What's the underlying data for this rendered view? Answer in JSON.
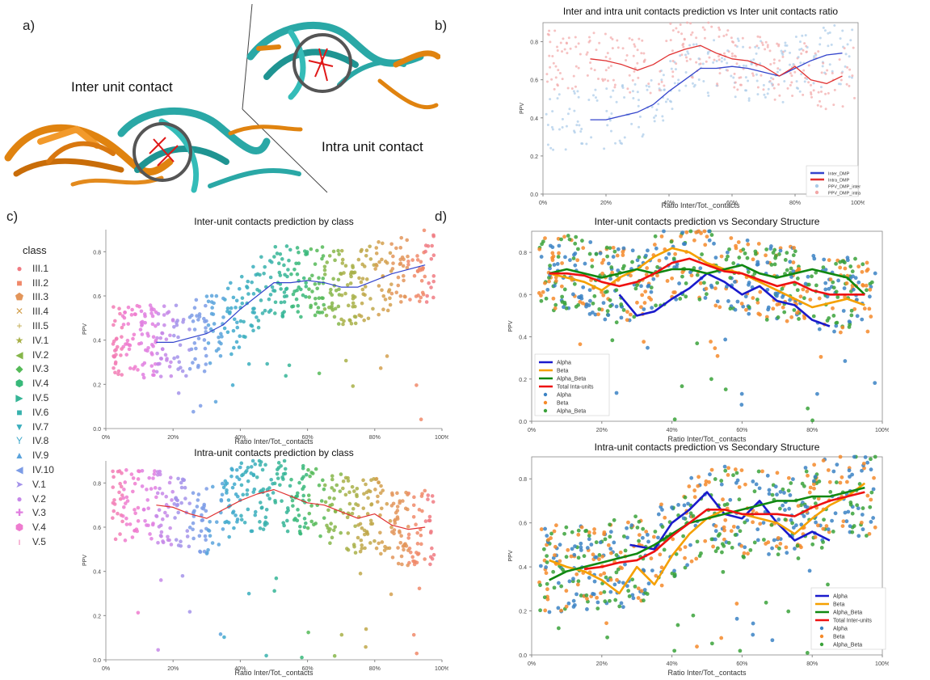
{
  "panels": {
    "a": "a)",
    "b": "b)",
    "c": "c)",
    "d": "d)"
  },
  "panel_a": {
    "inter_label": "Inter unit contact",
    "intra_label": "Intra unit contact"
  },
  "class_legend": {
    "title": "class",
    "items": [
      {
        "label": "III.1",
        "symbol": "●",
        "color": "#f07b82"
      },
      {
        "label": "III.2",
        "symbol": "■",
        "color": "#f0896a"
      },
      {
        "label": "III.3",
        "symbol": "⬟",
        "color": "#e3955a"
      },
      {
        "label": "III.4",
        "symbol": "✕",
        "color": "#d3a04f"
      },
      {
        "label": "III.5",
        "symbol": "+",
        "color": "#c0a84a"
      },
      {
        "label": "IV.1",
        "symbol": "★",
        "color": "#a8b048"
      },
      {
        "label": "IV.2",
        "symbol": "◀",
        "color": "#86b64a"
      },
      {
        "label": "IV.3",
        "symbol": "◆",
        "color": "#55ba58"
      },
      {
        "label": "IV.4",
        "symbol": "⬢",
        "color": "#38b97a"
      },
      {
        "label": "IV.5",
        "symbol": "▶",
        "color": "#35b596"
      },
      {
        "label": "IV.6",
        "symbol": "■",
        "color": "#38b2ad"
      },
      {
        "label": "IV.7",
        "symbol": "▼",
        "color": "#3aaebd"
      },
      {
        "label": "IV.8",
        "symbol": "Y",
        "color": "#40a9cc"
      },
      {
        "label": "IV.9",
        "symbol": "▲",
        "color": "#5aa3dc"
      },
      {
        "label": "IV.10",
        "symbol": "◀",
        "color": "#7c9ce6"
      },
      {
        "label": "V.1",
        "symbol": "➤",
        "color": "#a493ea"
      },
      {
        "label": "V.2",
        "symbol": "●",
        "color": "#c688e8"
      },
      {
        "label": "V.3",
        "symbol": "✚",
        "color": "#e07fe0"
      },
      {
        "label": "V.4",
        "symbol": "⬢",
        "color": "#ee7ccf"
      },
      {
        "label": "V.5",
        "symbol": "ı",
        "color": "#f27cb5"
      }
    ]
  },
  "chart_data": [
    {
      "id": "b",
      "type": "scatter",
      "title": "Inter and intra unit contacts prediction vs Inter unit contacts ratio",
      "xlabel": "Ratio Inter/Tot._contacts",
      "ylabel": "PPV",
      "xlim": [
        0,
        100
      ],
      "ylim": [
        0,
        0.9
      ],
      "xticks": [
        "0%",
        "20%",
        "40%",
        "60%",
        "80%",
        "100%"
      ],
      "yticks": [
        "0.0",
        "0.2",
        "0.4",
        "0.6",
        "0.8"
      ],
      "legend_position": "lower-right",
      "legend": [
        "Inter_DMP",
        "Intra_DMP",
        "PPV_DMP_inter",
        "PPV_DMP_intra"
      ],
      "series": [
        {
          "name": "Inter_DMP",
          "kind": "line",
          "color": "#3344cc",
          "x": [
            15,
            20,
            25,
            30,
            35,
            40,
            45,
            50,
            55,
            60,
            65,
            70,
            75,
            80,
            85,
            90,
            95
          ],
          "y": [
            0.39,
            0.39,
            0.41,
            0.43,
            0.47,
            0.54,
            0.6,
            0.66,
            0.66,
            0.67,
            0.66,
            0.64,
            0.62,
            0.66,
            0.7,
            0.73,
            0.74
          ]
        },
        {
          "name": "Intra_DMP",
          "kind": "line",
          "color": "#e03030",
          "x": [
            15,
            20,
            25,
            30,
            35,
            40,
            45,
            50,
            55,
            60,
            65,
            70,
            75,
            80,
            85,
            90,
            95
          ],
          "y": [
            0.71,
            0.7,
            0.68,
            0.65,
            0.68,
            0.73,
            0.76,
            0.78,
            0.74,
            0.71,
            0.7,
            0.67,
            0.62,
            0.67,
            0.6,
            0.58,
            0.62
          ]
        }
      ]
    },
    {
      "id": "c-top",
      "type": "scatter",
      "title": "Inter-unit contacts prediction by class",
      "xlabel": "Ratio Inter/Tot._contacts",
      "ylabel": "PPV",
      "xlim": [
        0,
        100
      ],
      "ylim": [
        0,
        0.9
      ],
      "xticks": [
        "0%",
        "20%",
        "40%",
        "60%",
        "80%",
        "100%"
      ],
      "yticks": [
        "0.0",
        "0.2",
        "0.4",
        "0.6",
        "0.8"
      ],
      "series": [
        {
          "name": "",
          "kind": "line",
          "color": "#3344cc",
          "x": [
            15,
            20,
            25,
            30,
            35,
            40,
            45,
            50,
            55,
            60,
            65,
            70,
            75,
            80,
            85,
            90,
            95
          ],
          "y": [
            0.39,
            0.39,
            0.41,
            0.43,
            0.47,
            0.54,
            0.6,
            0.66,
            0.66,
            0.67,
            0.66,
            0.64,
            0.64,
            0.67,
            0.7,
            0.72,
            0.74
          ]
        }
      ]
    },
    {
      "id": "c-bottom",
      "type": "scatter",
      "title": "Intra-unit contacts prediction by class",
      "xlabel": "Ratio Inter/Tot._contacts",
      "ylabel": "PPV",
      "xlim": [
        0,
        100
      ],
      "ylim": [
        0,
        0.9
      ],
      "xticks": [
        "0%",
        "20%",
        "40%",
        "60%",
        "80%",
        "100%"
      ],
      "yticks": [
        "0.0",
        "0.2",
        "0.4",
        "0.6",
        "0.8"
      ],
      "series": [
        {
          "name": "",
          "kind": "line",
          "color": "#e03030",
          "x": [
            15,
            20,
            25,
            30,
            35,
            40,
            45,
            50,
            55,
            60,
            65,
            70,
            75,
            80,
            85,
            90,
            95
          ],
          "y": [
            0.7,
            0.69,
            0.66,
            0.64,
            0.68,
            0.72,
            0.75,
            0.77,
            0.74,
            0.71,
            0.7,
            0.67,
            0.64,
            0.66,
            0.61,
            0.59,
            0.6
          ]
        }
      ]
    },
    {
      "id": "d-top",
      "type": "scatter",
      "title": "Inter-unit contacts prediction vs Secondary Structure",
      "xlabel": "Ratio Inter/Tot._contacts",
      "ylabel": "PPV",
      "xlim": [
        0,
        100
      ],
      "ylim": [
        0,
        0.9
      ],
      "xticks": [
        "0%",
        "20%",
        "40%",
        "60%",
        "80%",
        "100%"
      ],
      "yticks": [
        "0.0",
        "0.2",
        "0.4",
        "0.6",
        "0.8"
      ],
      "legend_position": "lower-left",
      "legend": [
        "Alpha",
        "Beta",
        "Alpha_Beta",
        "Total Inta-units",
        "Alpha",
        "Beta",
        "Alpha_Beta"
      ],
      "series": [
        {
          "name": "Alpha",
          "kind": "line",
          "color": "#1a1acc",
          "x": [
            25,
            30,
            35,
            40,
            45,
            50,
            55,
            60,
            65,
            70,
            75,
            80,
            85
          ],
          "y": [
            0.6,
            0.5,
            0.52,
            0.58,
            0.63,
            0.7,
            0.66,
            0.6,
            0.64,
            0.57,
            0.55,
            0.48,
            0.45
          ]
        },
        {
          "name": "Beta",
          "kind": "line",
          "color": "#f5a000",
          "x": [
            5,
            10,
            15,
            20,
            25,
            30,
            35,
            40,
            45,
            50,
            55,
            60,
            65,
            70,
            75,
            80,
            85,
            90,
            95
          ],
          "y": [
            0.7,
            0.68,
            0.66,
            0.62,
            0.68,
            0.72,
            0.78,
            0.82,
            0.8,
            0.75,
            0.72,
            0.7,
            0.66,
            0.62,
            0.58,
            0.54,
            0.56,
            0.58,
            0.55
          ]
        },
        {
          "name": "Alpha_Beta",
          "kind": "line",
          "color": "#118811",
          "x": [
            5,
            10,
            15,
            20,
            25,
            30,
            35,
            40,
            45,
            50,
            55,
            60,
            65,
            70,
            75,
            80,
            85,
            90,
            95
          ],
          "y": [
            0.7,
            0.72,
            0.7,
            0.68,
            0.7,
            0.72,
            0.7,
            0.72,
            0.72,
            0.7,
            0.72,
            0.74,
            0.7,
            0.68,
            0.7,
            0.72,
            0.7,
            0.68,
            0.6
          ]
        },
        {
          "name": "Total Inta-units",
          "kind": "line",
          "color": "#ee1111",
          "x": [
            5,
            10,
            15,
            20,
            25,
            30,
            35,
            40,
            45,
            50,
            55,
            60,
            65,
            70,
            75,
            80,
            85,
            90,
            95
          ],
          "y": [
            0.7,
            0.7,
            0.69,
            0.66,
            0.64,
            0.66,
            0.7,
            0.75,
            0.77,
            0.74,
            0.71,
            0.7,
            0.67,
            0.64,
            0.66,
            0.62,
            0.6,
            0.6,
            0.6
          ]
        }
      ]
    },
    {
      "id": "d-bottom",
      "type": "scatter",
      "title": "Intra-unit contacts prediction vs Secondary Structure",
      "xlabel": "Ratio Inter/Tot._contacts",
      "ylabel": "PPV",
      "xlim": [
        0,
        100
      ],
      "ylim": [
        0,
        0.9
      ],
      "xticks": [
        "0%",
        "20%",
        "40%",
        "60%",
        "80%",
        "100%"
      ],
      "yticks": [
        "0.0",
        "0.2",
        "0.4",
        "0.6",
        "0.8"
      ],
      "legend_position": "lower-right",
      "legend": [
        "Alpha",
        "Beta",
        "Alpha_Beta",
        "Total Inter-units",
        "Alpha",
        "Beta",
        "Alpha_Beta"
      ],
      "series": [
        {
          "name": "Alpha",
          "kind": "line",
          "color": "#1a1acc",
          "x": [
            28,
            35,
            40,
            45,
            50,
            55,
            60,
            65,
            70,
            75,
            80,
            85
          ],
          "y": [
            0.5,
            0.48,
            0.6,
            0.66,
            0.74,
            0.64,
            0.62,
            0.7,
            0.6,
            0.52,
            0.56,
            0.52
          ]
        },
        {
          "name": "Beta",
          "kind": "line",
          "color": "#f5a000",
          "x": [
            5,
            10,
            15,
            20,
            25,
            30,
            35,
            40,
            45,
            50,
            55,
            60,
            65,
            70,
            75,
            80,
            85,
            90,
            95
          ],
          "y": [
            0.43,
            0.4,
            0.38,
            0.34,
            0.28,
            0.4,
            0.32,
            0.45,
            0.55,
            0.62,
            0.66,
            0.64,
            0.62,
            0.6,
            0.55,
            0.62,
            0.68,
            0.72,
            0.78
          ]
        },
        {
          "name": "Alpha_Beta",
          "kind": "line",
          "color": "#118811",
          "x": [
            5,
            10,
            15,
            20,
            25,
            30,
            35,
            40,
            45,
            50,
            55,
            60,
            65,
            70,
            75,
            80,
            85,
            90,
            95
          ],
          "y": [
            0.34,
            0.38,
            0.4,
            0.42,
            0.44,
            0.46,
            0.5,
            0.55,
            0.6,
            0.62,
            0.64,
            0.66,
            0.68,
            0.7,
            0.7,
            0.72,
            0.72,
            0.74,
            0.76
          ]
        },
        {
          "name": "Total Inter-units",
          "kind": "line",
          "color": "#ee1111",
          "x": [
            15,
            20,
            25,
            30,
            35,
            40,
            45,
            50,
            55,
            60,
            65,
            70,
            75,
            80,
            85,
            90,
            95
          ],
          "y": [
            0.39,
            0.4,
            0.42,
            0.43,
            0.47,
            0.54,
            0.6,
            0.66,
            0.66,
            0.64,
            0.64,
            0.64,
            0.63,
            0.67,
            0.7,
            0.72,
            0.74
          ]
        }
      ]
    }
  ]
}
